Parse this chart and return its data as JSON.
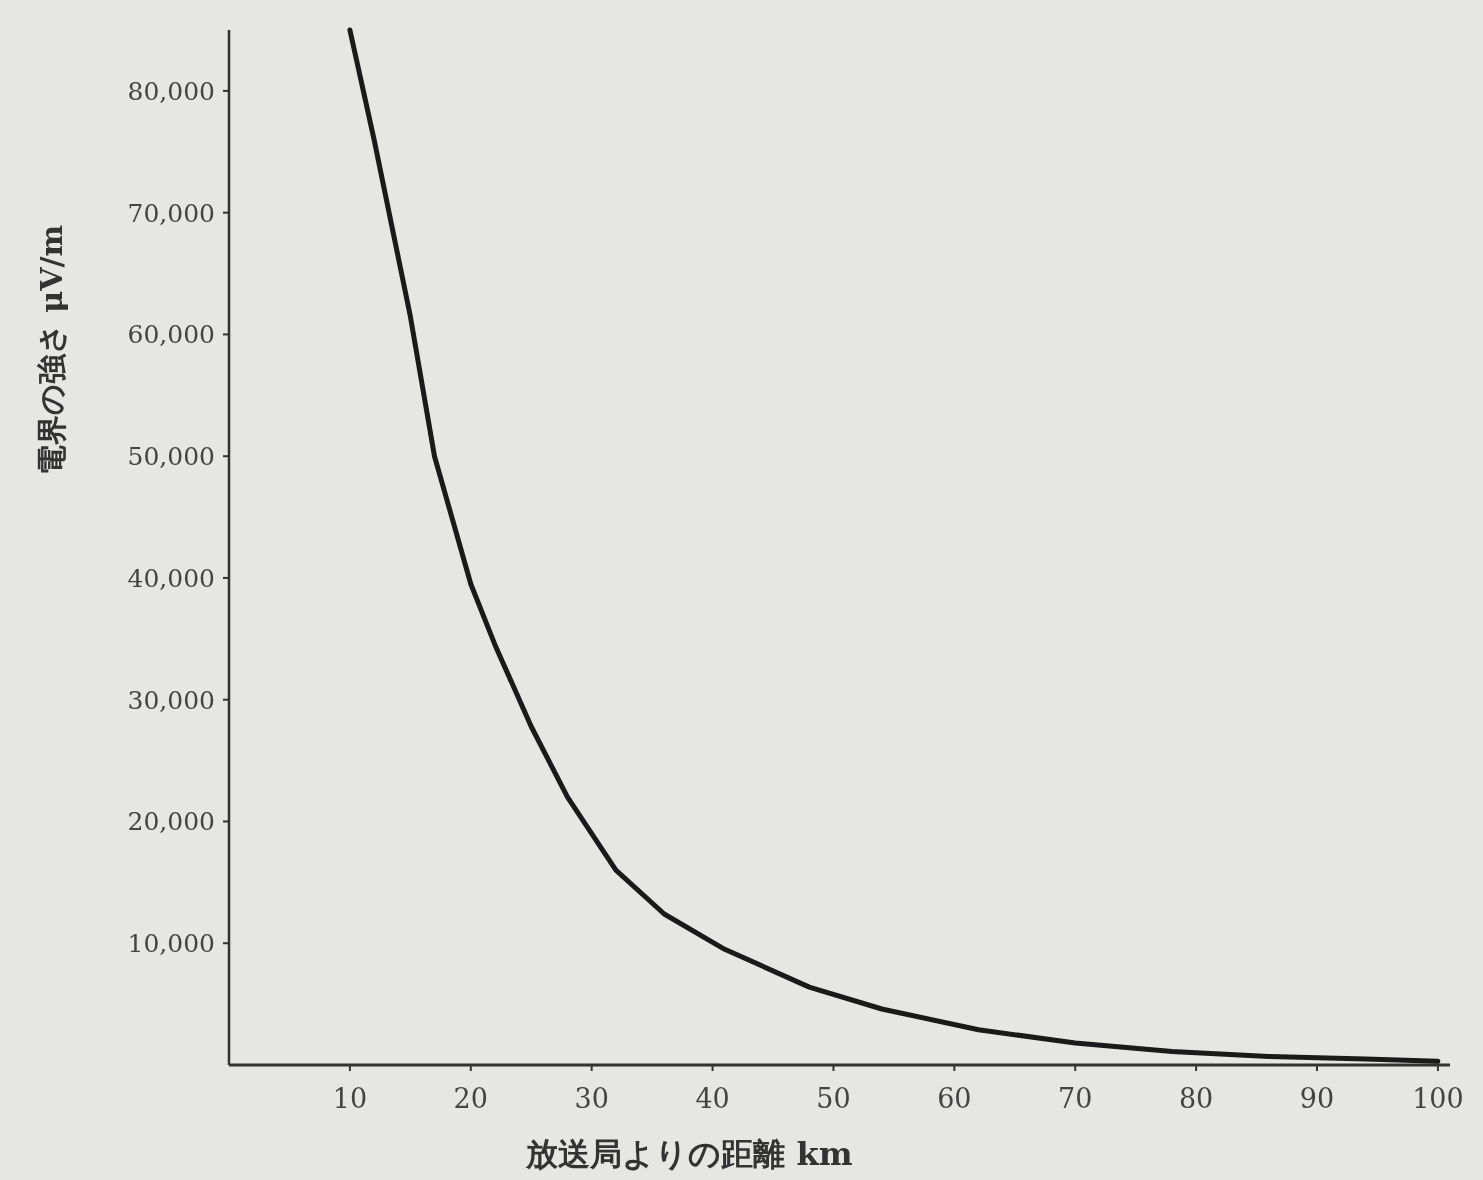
{
  "chart_data": {
    "type": "line",
    "xlabel": "放送局よりの距離 km",
    "ylabel": "電界の強さ μV/m",
    "x": [
      10,
      12,
      15,
      17,
      20,
      22,
      25,
      28,
      32,
      36,
      41,
      48,
      54,
      62,
      70,
      78,
      86,
      94,
      100
    ],
    "series": [
      {
        "color": "#1a1a1a",
        "values": [
          85000,
          76000,
          61500,
          50000,
          39500,
          34500,
          27800,
          22000,
          16000,
          12400,
          9500,
          6400,
          4600,
          2900,
          1800,
          1100,
          700,
          500,
          300
        ]
      }
    ],
    "xlim": [
      0,
      101
    ],
    "ylim": [
      0,
      85000
    ],
    "xticks": [
      10,
      20,
      30,
      40,
      50,
      60,
      70,
      80,
      90,
      100
    ],
    "yticks": [
      {
        "value": 10000,
        "label": "10,000"
      },
      {
        "value": 20000,
        "label": "20,000"
      },
      {
        "value": 30000,
        "label": "30,000"
      },
      {
        "value": 40000,
        "label": "40,000"
      },
      {
        "value": 50000,
        "label": "50,000"
      },
      {
        "value": 60000,
        "label": "60,000"
      },
      {
        "value": 70000,
        "label": "70,000"
      },
      {
        "value": 80000,
        "label": "80,000"
      }
    ],
    "grid": false,
    "marker": "none",
    "line_style": "solid"
  }
}
